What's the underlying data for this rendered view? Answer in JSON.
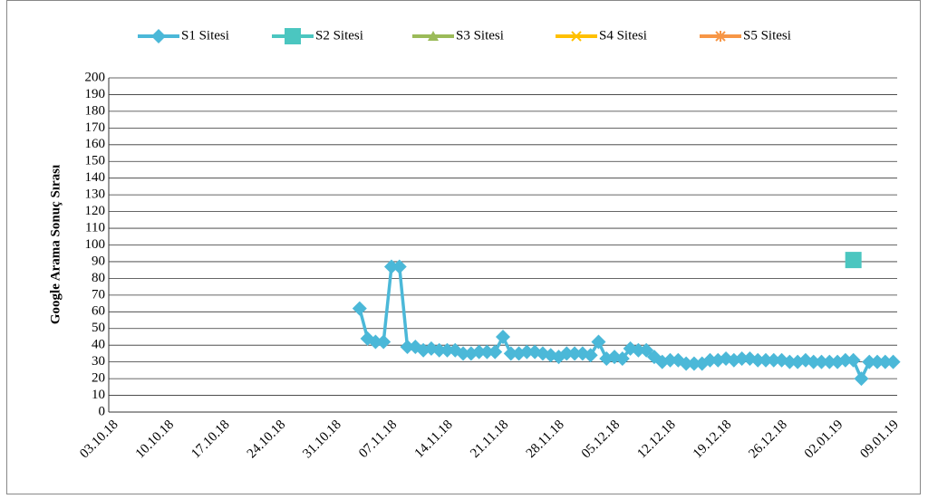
{
  "chart_data": {
    "type": "line",
    "y_label": "Google Arama Sonuç Sırası",
    "categories": [
      "03.10.18",
      null,
      null,
      null,
      null,
      null,
      null,
      "10.10.18",
      null,
      null,
      null,
      null,
      null,
      null,
      "17.10.18",
      null,
      null,
      null,
      null,
      null,
      null,
      "24.10.18",
      null,
      null,
      null,
      null,
      null,
      null,
      "31.10.18",
      null,
      null,
      null,
      null,
      null,
      null,
      "07.11.18",
      null,
      null,
      null,
      null,
      null,
      null,
      "14.11.18",
      null,
      null,
      null,
      null,
      null,
      null,
      "21.11.18",
      null,
      null,
      null,
      null,
      null,
      null,
      "28.11.18",
      null,
      null,
      null,
      null,
      null,
      null,
      "05.12.18",
      null,
      null,
      null,
      null,
      null,
      null,
      "12.12.18",
      null,
      null,
      null,
      null,
      null,
      null,
      "19.12.18",
      null,
      null,
      null,
      null,
      null,
      null,
      "26.12.18",
      null,
      null,
      null,
      null,
      null,
      null,
      "02.01.19",
      null,
      null,
      null,
      null,
      null,
      null,
      "09.01.19"
    ],
    "series": [
      {
        "name": "S1 Sitesi",
        "color": "#4bb8d8",
        "marker": "diamond",
        "values": [
          null,
          null,
          null,
          null,
          null,
          null,
          null,
          null,
          null,
          null,
          null,
          null,
          null,
          null,
          null,
          null,
          null,
          null,
          null,
          null,
          null,
          null,
          null,
          null,
          null,
          null,
          null,
          null,
          null,
          null,
          null,
          62,
          44,
          42,
          42,
          87,
          87,
          39,
          39,
          37,
          38,
          37,
          37,
          37,
          35,
          35,
          36,
          36,
          36,
          45,
          35,
          35,
          36,
          36,
          35,
          34,
          33,
          35,
          35,
          35,
          34,
          42,
          32,
          33,
          32,
          38,
          37,
          37,
          33,
          30,
          31,
          31,
          29,
          29,
          29,
          31,
          31,
          32,
          31,
          32,
          32,
          31,
          31,
          31,
          31,
          30,
          30,
          31,
          30,
          30,
          30,
          30,
          31,
          31,
          20,
          30,
          30,
          30,
          30
        ]
      },
      {
        "name": "S2 Sitesi",
        "color": "#4bc6c0",
        "marker": "square",
        "values": [
          null,
          null,
          null,
          null,
          null,
          null,
          null,
          null,
          null,
          null,
          null,
          null,
          null,
          null,
          null,
          null,
          null,
          null,
          null,
          null,
          null,
          null,
          null,
          null,
          null,
          null,
          null,
          null,
          null,
          null,
          null,
          null,
          null,
          null,
          null,
          null,
          null,
          null,
          null,
          null,
          null,
          null,
          null,
          null,
          null,
          null,
          null,
          null,
          null,
          null,
          null,
          null,
          null,
          null,
          null,
          null,
          null,
          null,
          null,
          null,
          null,
          null,
          null,
          null,
          null,
          null,
          null,
          null,
          null,
          null,
          null,
          null,
          null,
          null,
          null,
          null,
          null,
          null,
          null,
          null,
          null,
          null,
          null,
          null,
          null,
          null,
          null,
          null,
          null,
          null,
          null,
          null,
          null,
          91,
          null,
          null,
          null,
          null,
          null
        ]
      },
      {
        "name": "S3 Sitesi",
        "color": "#9bbb59",
        "marker": "triangle",
        "values": [
          null,
          null,
          null,
          null,
          null,
          null,
          null,
          null,
          null,
          null,
          null,
          null,
          null,
          null,
          null,
          null,
          null,
          null,
          null,
          null,
          null,
          null,
          null,
          null,
          null,
          null,
          null,
          null,
          null,
          null,
          null,
          null,
          null,
          null,
          null,
          null,
          null,
          null,
          null,
          null,
          null,
          null,
          null,
          null,
          null,
          null,
          null,
          null,
          null,
          null,
          null,
          null,
          null,
          null,
          null,
          null,
          null,
          null,
          null,
          null,
          null,
          null,
          null,
          null,
          null,
          null,
          null,
          null,
          null,
          null,
          null,
          null,
          null,
          null,
          null,
          null,
          null,
          null,
          null,
          null,
          null,
          null,
          null,
          null,
          null,
          null,
          null,
          null,
          null,
          null,
          null,
          null,
          null,
          null,
          null,
          null,
          null,
          null,
          null
        ]
      },
      {
        "name": "S4 Sitesi",
        "color": "#ffc000",
        "marker": "x",
        "values": [
          null,
          null,
          null,
          null,
          null,
          null,
          null,
          null,
          null,
          null,
          null,
          null,
          null,
          null,
          null,
          null,
          null,
          null,
          null,
          null,
          null,
          null,
          null,
          null,
          null,
          null,
          null,
          null,
          null,
          null,
          null,
          null,
          null,
          null,
          null,
          null,
          null,
          null,
          null,
          null,
          null,
          null,
          null,
          null,
          null,
          null,
          null,
          null,
          null,
          null,
          null,
          null,
          null,
          null,
          null,
          null,
          null,
          null,
          null,
          null,
          null,
          null,
          null,
          null,
          null,
          null,
          null,
          null,
          null,
          null,
          null,
          null,
          null,
          null,
          null,
          null,
          null,
          null,
          null,
          null,
          null,
          null,
          null,
          null,
          null,
          null,
          null,
          null,
          null,
          null,
          null,
          null,
          null,
          null,
          null,
          null,
          null,
          null,
          null
        ]
      },
      {
        "name": "S5 Sitesi",
        "color": "#f79646",
        "marker": "star",
        "values": [
          null,
          null,
          null,
          null,
          null,
          null,
          null,
          null,
          null,
          null,
          null,
          null,
          null,
          null,
          null,
          null,
          null,
          null,
          null,
          null,
          null,
          null,
          null,
          null,
          null,
          null,
          null,
          null,
          null,
          null,
          null,
          null,
          null,
          null,
          null,
          null,
          null,
          null,
          null,
          null,
          null,
          null,
          null,
          null,
          null,
          null,
          null,
          null,
          null,
          null,
          null,
          null,
          null,
          null,
          null,
          null,
          null,
          null,
          null,
          null,
          null,
          null,
          null,
          null,
          null,
          null,
          null,
          null,
          null,
          null,
          null,
          null,
          null,
          null,
          null,
          null,
          null,
          null,
          null,
          null,
          null,
          null,
          null,
          null,
          null,
          null,
          null,
          null,
          null,
          null,
          null,
          null,
          null,
          null,
          null,
          null,
          null,
          null,
          null
        ]
      }
    ],
    "ylim": [
      0,
      200
    ],
    "yticks": [
      0,
      10,
      20,
      30,
      40,
      50,
      60,
      70,
      80,
      90,
      100,
      110,
      120,
      130,
      140,
      150,
      160,
      170,
      180,
      190,
      200
    ],
    "grid": true,
    "legend": "top"
  }
}
